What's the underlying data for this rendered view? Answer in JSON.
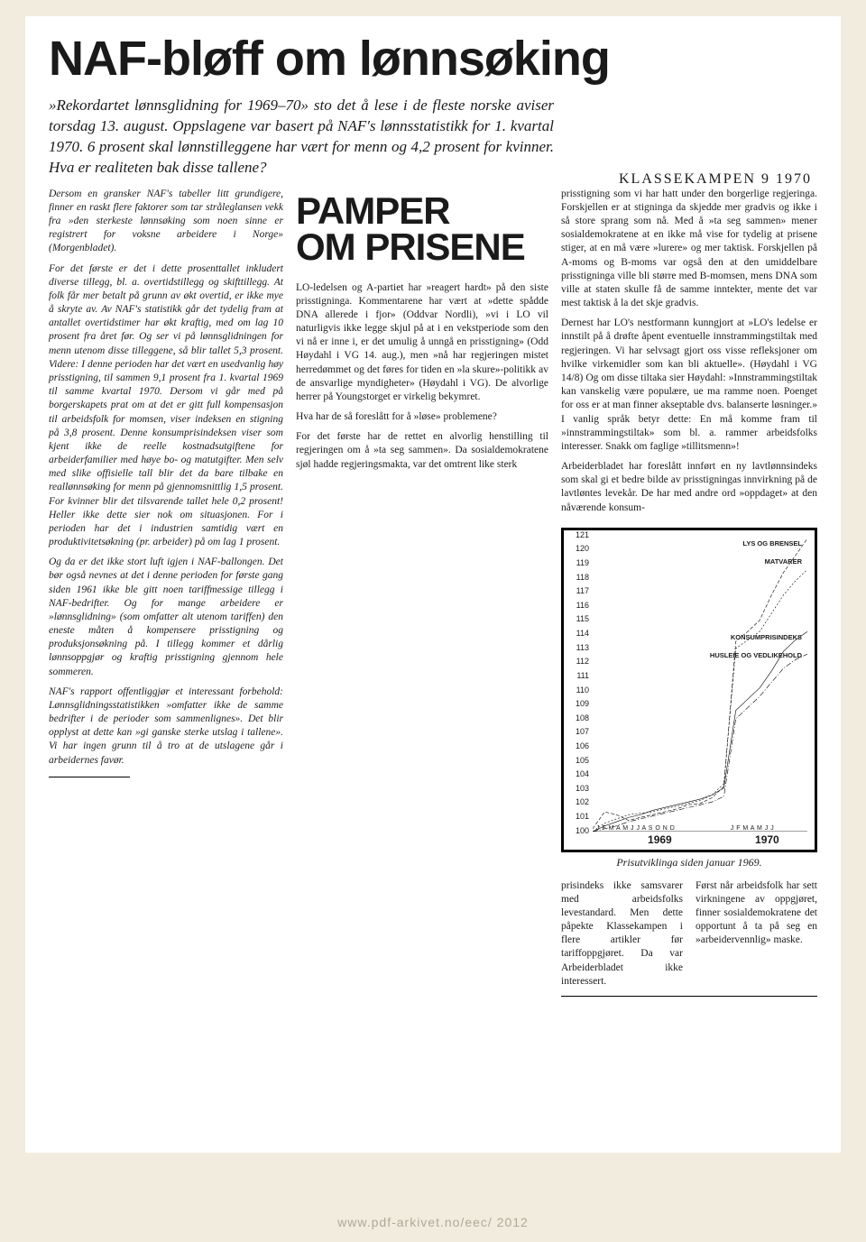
{
  "headline": "NAF-bløff om lønnsøking",
  "lede": "»Rekordartet lønnsglidning for 1969–70» sto det å lese i de fleste norske aviser torsdag 13. august. Oppslagene var basert på NAF's lønnsstatistikk for 1. kvartal 1970. 6 prosent skal lønnstilleggene har vært for menn og 4,2 prosent for kvinner. Hva er realiteten bak disse tallene?",
  "masthead": "KLASSEKAMPEN   9   1970",
  "left": {
    "p1": "Dersom en gransker NAF's tabeller litt grundigere, finner en raskt flere faktorer som tar stråleglansen vekk fra »den sterkeste lønnsøking som noen sinne er registrert for voksne arbeidere i Norge» (Morgenbladet).",
    "p2": "For det første er det i dette prosenttallet inkludert diverse tillegg, bl. a. overtidstillegg og skifttillegg. At folk får mer betalt på grunn av økt overtid, er ikke mye å skryte av. Av NAF's statistikk går det tydelig fram at antallet overtidstimer har økt kraftig, med om lag 10 prosent fra året før. Og ser vi på lønnsglidningen for menn utenom disse tilleggene, så blir tallet 5,3 prosent. Videre: I denne perioden har det vært en usedvanlig høy prisstigning, til sammen 9,1 prosent fra 1. kvartal 1969 til samme kvartal 1970. Dersom vi går med på borgerskapets prat om at det er gitt full kompensasjon til arbeidsfolk for momsen, viser indeksen en stigning på 3,8 prosent. Denne konsumprisindeksen viser som kjent ikke de reelle kostnadsutgiftene for arbeiderfamilier med høye bo- og matutgifter. Men selv med slike offisielle tall blir det da bare tilbake en reallønnsøking for menn på gjennomsnittlig 1,5 prosent. For kvinner blir det tilsvarende tallet hele 0,2 prosent! Heller ikke dette sier nok om situasjonen. For i perioden har det i industrien samtidig vært en produktivitetsøkning (pr. arbeider) på om lag 1 prosent.",
    "p3": "Og da er det ikke stort luft igjen i NAF-ballongen. Det bør også nevnes at det i denne perioden for første gang siden 1961 ikke ble gitt noen tariffmessige tillegg i NAF-bedrifter. Og for mange arbeidere er »lønnsglidning» (som omfatter alt utenom tariffen) den eneste måten å kompensere prisstigning og produksjonsøkning på. I tillegg kommer et dårlig lønnsoppgjør og kraftig prisstigning gjennom hele sommeren.",
    "p4": "NAF's rapport offentliggjør et interessant forbehold: Lønnsglidningsstatistikken »omfatter ikke de samme bedrifter i de perioder som sammenlignes». Det blir opplyst at dette kan »gi ganske sterke utslag i tallene». Vi har ingen grunn til å tro at de utslagene går i arbeidernes favør."
  },
  "subhead_line1": "PAMPER",
  "subhead_line2": "OM PRISENE",
  "mid": {
    "p1": "LO-ledelsen og A-partiet har »reagert hardt» på den siste prisstigninga. Kommentarene har vært at »dette spådde DNA allerede i fjor» (Oddvar Nordli), »vi i LO vil naturligvis ikke legge skjul på at i en vekstperiode som den vi nå er inne i, er det umulig å unngå en prisstigning» (Odd Høydahl i VG 14. aug.), men »nå har regjeringen mistet herredømmet og det føres for tiden en »la skure»-politikk av de ansvarlige myndigheter» (Høydahl i VG). De alvorlige herrer på Youngstorget er virkelig bekymret.",
    "p2": "Hva har de så foreslått for å »løse» problemene?",
    "p3": "For det første har de rettet en alvorlig henstilling til regjeringen om å »ta seg sammen». Da sosialdemokratene sjøl hadde regjeringsmakta, var det omtrent like sterk"
  },
  "right": {
    "p1": "prisstigning som vi har hatt under den borgerlige regjeringa. Forskjellen er at stigninga da skjedde mer gradvis og ikke i så store sprang som nå. Med å »ta seg sammen» mener sosialdemokratene at en ikke må vise for tydelig at prisene stiger, at en må være »lurere» og mer taktisk. Forskjellen på A-moms og B-moms var også den at den umiddelbare prisstigninga ville bli større med B-momsen, mens DNA som ville at staten skulle få de samme inntekter, mente det var mest taktisk å la det skje gradvis.",
    "p2": "Dernest har LO's nestformann kunngjort at »LO's ledelse er innstilt på å drøfte åpent eventuelle innstrammingstiltak med regjeringen. Vi har selvsagt gjort oss visse refleksjoner om hvilke virkemidler som kan bli aktuelle». (Høydahl i VG 14/8) Og om disse tiltaka sier Høydahl: »Innstrammingstiltak kan vanskelig være populære, ue ma ramme noen. Poenget for oss er at man finner akseptable dvs. balanserte løsninger.» I vanlig språk betyr dette: En må komme fram til »innstrammingstiltak» som bl. a. rammer arbeidsfolks interesser. Snakk om faglige »tillitsmenn»!",
    "p3": "Arbeiderbladet har foreslått innført en ny lavtlønnsindeks som skal gi et bedre bilde av prisstigningas innvirkning på de lavtløntes levekår. De har med andre ord »oppdaget» at den nåværende konsum-"
  },
  "chart": {
    "caption": "Prisutviklinga siden januar 1969.",
    "ylim": [
      100,
      121
    ],
    "yticks": [
      100,
      101,
      102,
      103,
      104,
      105,
      106,
      107,
      108,
      109,
      110,
      111,
      112,
      113,
      114,
      115,
      116,
      117,
      118,
      119,
      120,
      121
    ],
    "x_months_1969": "J F M A M J J A S O N D",
    "x_months_1970": "J F M A M J J",
    "year1": "1969",
    "year2": "1970",
    "label_lys": "LYS OG BRENSEL",
    "label_mat": "MATVARER",
    "label_konsum": "KONSUMPRISINDEKS",
    "label_husleie": "HUSLEIE OG VEDLIKEHOLD",
    "series": {
      "lys_og_brensel": {
        "color": "#000",
        "dash": "4,2",
        "points": [
          [
            0,
            100.2
          ],
          [
            1,
            101.4
          ],
          [
            2,
            101.2
          ],
          [
            3,
            100.8
          ],
          [
            4,
            101.0
          ],
          [
            5,
            101.2
          ],
          [
            6,
            101.4
          ],
          [
            7,
            101.6
          ],
          [
            8,
            101.9
          ],
          [
            9,
            102.0
          ],
          [
            10,
            102.4
          ],
          [
            11,
            103.2
          ],
          [
            12,
            113.5
          ],
          [
            13,
            114.2
          ],
          [
            14,
            115.0
          ],
          [
            15,
            116.8
          ],
          [
            16,
            118.4
          ],
          [
            17,
            119.6
          ],
          [
            18,
            120.8
          ]
        ]
      },
      "matvarer": {
        "color": "#000",
        "dash": "2,2",
        "points": [
          [
            0,
            100.0
          ],
          [
            1,
            100.6
          ],
          [
            2,
            100.9
          ],
          [
            3,
            101.2
          ],
          [
            4,
            101.3
          ],
          [
            5,
            101.4
          ],
          [
            6,
            101.6
          ],
          [
            7,
            101.8
          ],
          [
            8,
            102.0
          ],
          [
            9,
            102.2
          ],
          [
            10,
            102.6
          ],
          [
            11,
            103.4
          ],
          [
            12,
            113.0
          ],
          [
            13,
            113.6
          ],
          [
            14,
            114.2
          ],
          [
            15,
            115.5
          ],
          [
            16,
            116.8
          ],
          [
            17,
            117.8
          ],
          [
            18,
            118.6
          ]
        ]
      },
      "konsumprisindeks": {
        "color": "#000",
        "dash": "",
        "points": [
          [
            0,
            100.0
          ],
          [
            1,
            100.4
          ],
          [
            2,
            100.7
          ],
          [
            3,
            101.0
          ],
          [
            4,
            101.2
          ],
          [
            5,
            101.5
          ],
          [
            6,
            101.7
          ],
          [
            7,
            101.9
          ],
          [
            8,
            102.1
          ],
          [
            9,
            102.3
          ],
          [
            10,
            102.6
          ],
          [
            11,
            103.1
          ],
          [
            12,
            108.6
          ],
          [
            13,
            109.4
          ],
          [
            14,
            110.2
          ],
          [
            15,
            111.4
          ],
          [
            16,
            112.8
          ],
          [
            17,
            113.6
          ],
          [
            18,
            114.2
          ]
        ]
      },
      "husleie": {
        "color": "#000",
        "dash": "6,2,1,2",
        "points": [
          [
            0,
            100.0
          ],
          [
            1,
            100.2
          ],
          [
            2,
            100.4
          ],
          [
            3,
            100.7
          ],
          [
            4,
            100.9
          ],
          [
            5,
            101.1
          ],
          [
            6,
            101.3
          ],
          [
            7,
            101.5
          ],
          [
            8,
            101.7
          ],
          [
            9,
            101.9
          ],
          [
            10,
            102.1
          ],
          [
            11,
            102.5
          ],
          [
            12,
            108.0
          ],
          [
            13,
            108.8
          ],
          [
            14,
            109.6
          ],
          [
            15,
            110.6
          ],
          [
            16,
            111.6
          ],
          [
            17,
            112.2
          ],
          [
            18,
            112.6
          ]
        ]
      }
    }
  },
  "below_left": "prisindeks ikke samsvarer med arbeidsfolks levestandard. Men dette påpekte Klassekampen i flere artikler før tariffoppgjøret. Da var Arbeiderbladet ikke interessert.",
  "below_right": "Først når arbeidsfolk har sett virkningene av oppgjøret, finner sosialdemokratene det opportunt å ta på seg en »arbeidervennlig» maske.",
  "footer": "www.pdf-arkivet.no/eec/    2012"
}
